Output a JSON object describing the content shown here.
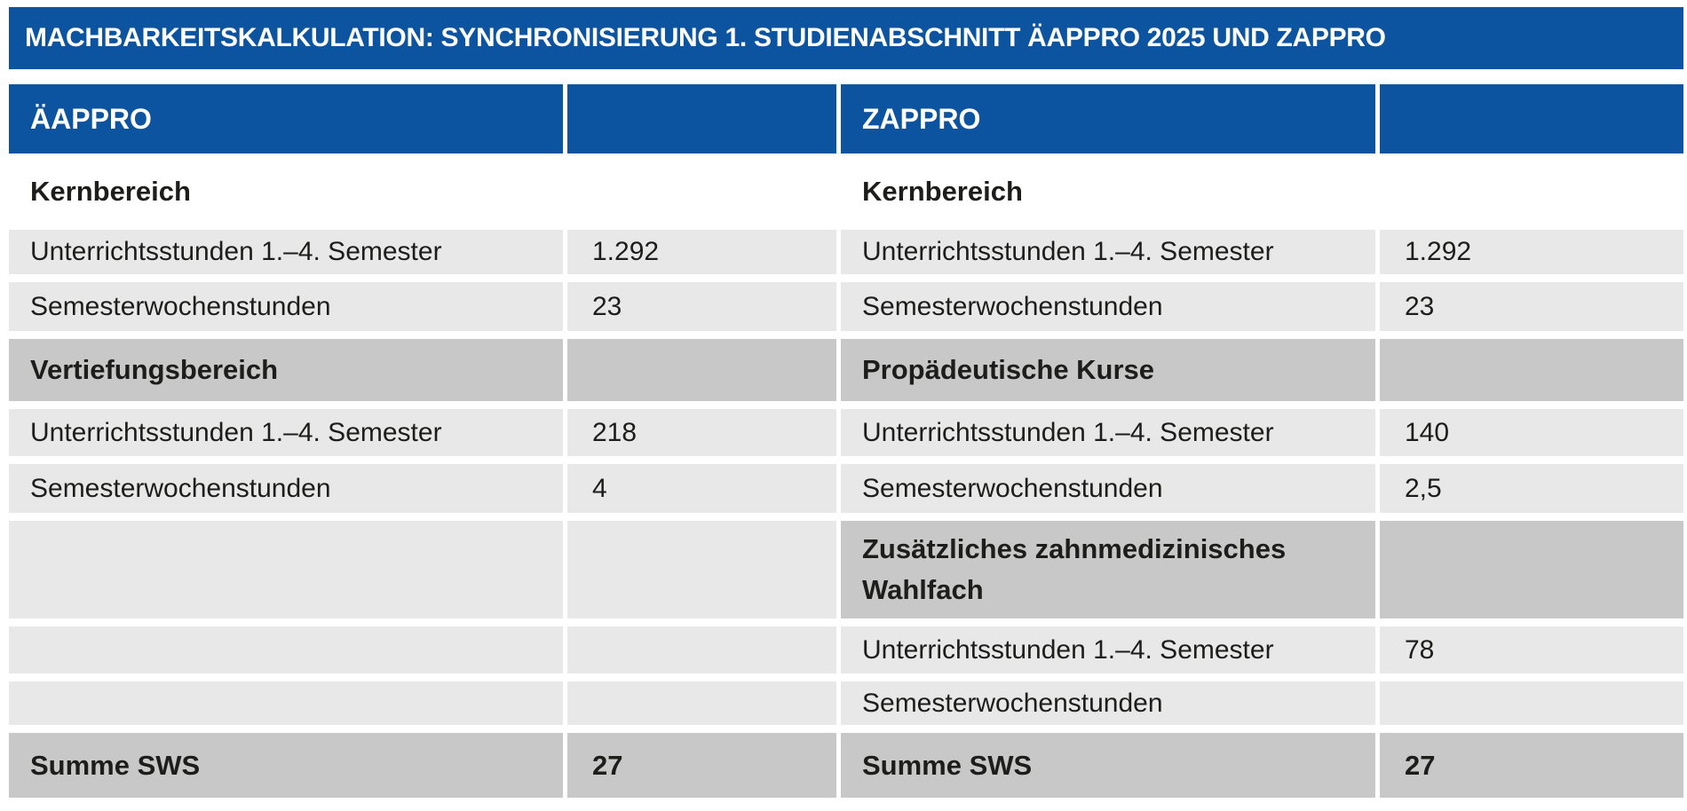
{
  "page": {
    "title": "MACHBARKEITSKALKULATION: SYNCHRONISIERUNG 1. STUDIENABSCHNITT ÄAPPRO 2025 UND ZAPPRO"
  },
  "colors": {
    "header_blue": "#0d54a0",
    "row_light_gray": "#e8e8e8",
    "row_dark_gray": "#c7c8c7",
    "text_dark": "#1d1d1b",
    "header_text": "#ffffff",
    "background": "#ffffff"
  },
  "table": {
    "left_program": "ÄAPPRO",
    "right_program": "ZAPPRO",
    "rows": [
      {
        "type": "column-header",
        "cells": [
          {
            "text": "ÄAPPRO"
          },
          {
            "text": ""
          },
          {
            "text": "ZAPPRO"
          },
          {
            "text": ""
          }
        ]
      },
      {
        "type": "section-plain",
        "cells": [
          {
            "text": "Kernbereich"
          },
          {
            "text": ""
          },
          {
            "text": "Kernbereich"
          },
          {
            "text": ""
          }
        ]
      },
      {
        "type": "data",
        "cells": [
          {
            "text": "Unterrichtsstunden 1.–4. Semester"
          },
          {
            "text": "1.292"
          },
          {
            "text": "Unterrichtsstunden 1.–4. Semester"
          },
          {
            "text": "1.292"
          }
        ]
      },
      {
        "type": "data",
        "cells": [
          {
            "text": "Semesterwochenstunden"
          },
          {
            "text": "23"
          },
          {
            "text": "Semesterwochenstunden"
          },
          {
            "text": "23"
          }
        ]
      },
      {
        "type": "section-dark",
        "cells": [
          {
            "text": "Vertiefungsbereich"
          },
          {
            "text": ""
          },
          {
            "text": "Propädeutische Kurse"
          },
          {
            "text": ""
          }
        ]
      },
      {
        "type": "data",
        "cells": [
          {
            "text": "Unterrichtsstunden 1.–4. Semester"
          },
          {
            "text": "218"
          },
          {
            "text": "Unterrichtsstunden 1.–4. Semester"
          },
          {
            "text": "140"
          }
        ]
      },
      {
        "type": "data",
        "cells": [
          {
            "text": "Semesterwochenstunden"
          },
          {
            "text": "4"
          },
          {
            "text": "Semesterwochenstunden"
          },
          {
            "text": "2,5"
          }
        ]
      },
      {
        "type": "mixed-section",
        "cells": [
          {
            "text": ""
          },
          {
            "text": ""
          },
          {
            "text": "Zusätzliches zahnmedizinisches Wahlfach"
          },
          {
            "text": ""
          }
        ]
      },
      {
        "type": "data-right-only",
        "cells": [
          {
            "text": ""
          },
          {
            "text": ""
          },
          {
            "text": "Unterrichtsstunden 1.–4. Semester"
          },
          {
            "text": "78"
          }
        ]
      },
      {
        "type": "data-right-only",
        "cells": [
          {
            "text": ""
          },
          {
            "text": ""
          },
          {
            "text": "Semesterwochenstunden"
          },
          {
            "text": ""
          }
        ]
      },
      {
        "type": "sum",
        "cells": [
          {
            "text": "Summe SWS"
          },
          {
            "text": "27"
          },
          {
            "text": "Summe SWS"
          },
          {
            "text": "27"
          }
        ]
      }
    ]
  }
}
